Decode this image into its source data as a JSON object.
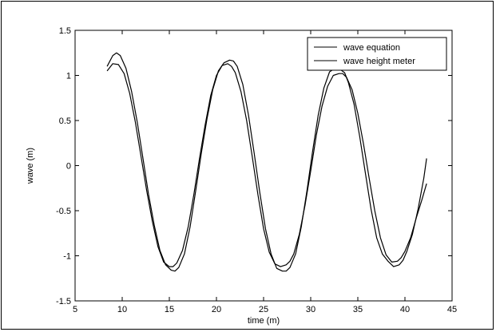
{
  "chart_data": {
    "type": "line",
    "title": "",
    "xlabel": "time (m)",
    "ylabel": "wave (m)",
    "xlim": [
      5,
      45
    ],
    "ylim": [
      -1.5,
      1.5
    ],
    "xticks": [
      5,
      10,
      15,
      20,
      25,
      30,
      35,
      40,
      45
    ],
    "yticks": [
      -1.5,
      -1,
      -0.5,
      0,
      0.5,
      1,
      1.5
    ],
    "xtick_labels": [
      "5",
      "10",
      "15",
      "20",
      "25",
      "30",
      "35",
      "40",
      "45"
    ],
    "ytick_labels": [
      "-1.5",
      "-1",
      "-0.5",
      "0",
      "0.5",
      "1",
      "1.5"
    ],
    "grid": false,
    "legend_position": "top-right",
    "line_color": "#000000",
    "series": [
      {
        "name": "wave equation",
        "x": [
          8.4,
          9.0,
          9.6,
          10.2,
          10.8,
          11.4,
          12.0,
          12.6,
          13.2,
          13.8,
          14.4,
          15.0,
          15.4,
          15.8,
          16.4,
          17.0,
          17.6,
          18.2,
          18.8,
          19.4,
          20.0,
          20.6,
          21.2,
          21.6,
          22.0,
          22.6,
          23.2,
          23.8,
          24.4,
          25.0,
          25.6,
          26.2,
          26.8,
          27.4,
          27.8,
          28.2,
          28.8,
          29.4,
          30.0,
          30.6,
          31.2,
          31.8,
          32.4,
          33.0,
          33.4,
          33.8,
          34.4,
          35.0,
          35.6,
          36.2,
          36.8,
          37.4,
          38.0,
          38.6,
          39.2,
          39.6,
          40.0,
          40.6,
          41.2,
          41.8,
          42.3
        ],
        "y": [
          1.05,
          1.13,
          1.12,
          1.02,
          0.8,
          0.48,
          0.1,
          -0.28,
          -0.62,
          -0.9,
          -1.07,
          -1.12,
          -1.12,
          -1.08,
          -0.94,
          -0.68,
          -0.32,
          0.08,
          0.45,
          0.78,
          1.0,
          1.11,
          1.13,
          1.1,
          1.03,
          0.82,
          0.5,
          0.1,
          -0.32,
          -0.7,
          -0.96,
          -1.09,
          -1.12,
          -1.1,
          -1.06,
          -0.98,
          -0.76,
          -0.44,
          -0.06,
          0.34,
          0.66,
          0.88,
          1.0,
          1.02,
          1.02,
          0.98,
          0.84,
          0.58,
          0.24,
          -0.14,
          -0.5,
          -0.8,
          -0.99,
          -1.07,
          -1.06,
          -1.02,
          -0.95,
          -0.8,
          -0.58,
          -0.38,
          -0.2
        ]
      },
      {
        "name": "wave height meter",
        "x": [
          8.4,
          9.0,
          9.4,
          9.8,
          10.4,
          11.0,
          11.6,
          12.2,
          12.8,
          13.4,
          14.0,
          14.6,
          15.2,
          15.6,
          16.0,
          16.6,
          17.2,
          17.8,
          18.4,
          19.0,
          19.6,
          20.2,
          20.8,
          21.4,
          21.8,
          22.2,
          22.8,
          23.4,
          24.0,
          24.6,
          25.2,
          25.8,
          26.4,
          27.0,
          27.4,
          27.8,
          28.4,
          29.0,
          29.6,
          30.2,
          30.8,
          31.4,
          32.0,
          32.6,
          33.2,
          33.6,
          34.0,
          34.6,
          35.2,
          35.8,
          36.4,
          37.0,
          37.6,
          38.2,
          38.8,
          39.4,
          39.8,
          40.2,
          40.8,
          41.4,
          42.0,
          42.3
        ],
        "y": [
          1.1,
          1.22,
          1.25,
          1.22,
          1.08,
          0.82,
          0.48,
          0.08,
          -0.32,
          -0.66,
          -0.94,
          -1.1,
          -1.16,
          -1.17,
          -1.13,
          -0.98,
          -0.68,
          -0.28,
          0.14,
          0.52,
          0.84,
          1.05,
          1.14,
          1.17,
          1.16,
          1.1,
          0.9,
          0.56,
          0.14,
          -0.3,
          -0.7,
          -0.98,
          -1.14,
          -1.17,
          -1.17,
          -1.13,
          -0.98,
          -0.68,
          -0.28,
          0.16,
          0.56,
          0.86,
          1.04,
          1.08,
          1.06,
          1.03,
          0.92,
          0.68,
          0.32,
          -0.08,
          -0.48,
          -0.8,
          -0.98,
          -1.06,
          -1.12,
          -1.1,
          -1.05,
          -0.95,
          -0.76,
          -0.48,
          -0.14,
          0.08
        ]
      }
    ]
  }
}
